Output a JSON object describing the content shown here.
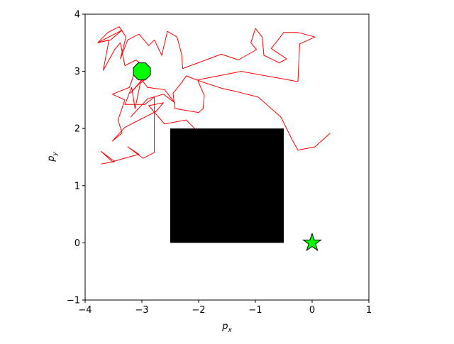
{
  "chart_data": {
    "type": "line",
    "title": "",
    "xlabel": "p_x",
    "ylabel": "p_y",
    "xlabel_parts": {
      "base": "p",
      "sub": "x"
    },
    "ylabel_parts": {
      "base": "p",
      "sub": "y"
    },
    "xlim": [
      -4,
      1
    ],
    "ylim": [
      -1,
      4
    ],
    "xticks": [
      -4,
      -3,
      -2,
      -1,
      0,
      1
    ],
    "yticks": [
      -1,
      0,
      1,
      2,
      3,
      4
    ],
    "xtick_labels": [
      "−4",
      "−3",
      "−2",
      "−1",
      "0",
      "1"
    ],
    "ytick_labels": [
      "−1",
      "0",
      "1",
      "2",
      "3",
      "4"
    ],
    "grid": false,
    "legend": "none",
    "series": [
      {
        "color": "#ff0000",
        "points": [
          [
            -3.72,
            1.38
          ],
          [
            -3.48,
            1.42
          ],
          [
            -3.72,
            1.6
          ],
          [
            -3.52,
            1.42
          ],
          [
            -3.05,
            1.55
          ],
          [
            -3.25,
            1.68
          ],
          [
            -2.98,
            1.48
          ],
          [
            -2.78,
            1.58
          ],
          [
            -2.78,
            2.55
          ],
          [
            -2.95,
            2.42
          ],
          [
            -3.3,
            2.42
          ],
          [
            -3.18,
            2.72
          ],
          [
            -3.12,
            2.35
          ],
          [
            -2.98,
            3.02
          ],
          [
            -2.95,
            2.85
          ],
          [
            -3.05,
            2.78
          ],
          [
            -3.2,
            2.62
          ],
          [
            -3.0,
            2.85
          ],
          [
            -2.88,
            3.0
          ],
          [
            -3.1,
            3.2
          ],
          [
            -3.3,
            3.1
          ],
          [
            -3.38,
            3.5
          ],
          [
            -3.48,
            3.38
          ],
          [
            -3.68,
            3.02
          ],
          [
            -3.58,
            3.55
          ],
          [
            -3.78,
            3.5
          ],
          [
            -3.35,
            3.72
          ],
          [
            -3.55,
            3.55
          ],
          [
            -3.78,
            3.5
          ],
          [
            -3.6,
            3.68
          ],
          [
            -3.4,
            3.78
          ],
          [
            -3.28,
            3.6
          ],
          [
            -3.38,
            3.22
          ],
          [
            -3.25,
            3.55
          ],
          [
            -3.05,
            3.65
          ],
          [
            -2.88,
            3.45
          ],
          [
            -2.78,
            3.55
          ],
          [
            -2.65,
            3.28
          ],
          [
            -2.55,
            3.7
          ],
          [
            -2.38,
            3.6
          ],
          [
            -2.3,
            3.3
          ],
          [
            -2.28,
            3.05
          ],
          [
            -1.6,
            3.3
          ],
          [
            -1.3,
            3.2
          ],
          [
            -0.98,
            3.38
          ],
          [
            -1.08,
            3.5
          ],
          [
            -1.0,
            3.75
          ],
          [
            -0.88,
            3.6
          ],
          [
            -0.85,
            3.28
          ],
          [
            -0.58,
            3.15
          ],
          [
            -0.45,
            3.22
          ],
          [
            -0.72,
            3.4
          ],
          [
            -0.5,
            3.68
          ],
          [
            -0.25,
            3.68
          ],
          [
            0.05,
            3.6
          ],
          [
            -0.22,
            3.48
          ],
          [
            -0.25,
            2.82
          ],
          [
            -0.58,
            2.88
          ],
          [
            -1.25,
            3.0
          ],
          [
            -2.02,
            2.85
          ],
          [
            -1.9,
            2.58
          ],
          [
            -1.92,
            2.35
          ],
          [
            -2.0,
            2.28
          ],
          [
            -2.42,
            2.35
          ],
          [
            -2.45,
            2.62
          ],
          [
            -2.3,
            2.8
          ],
          [
            -2.22,
            2.92
          ],
          [
            -1.95,
            2.82
          ],
          [
            -1.58,
            2.7
          ],
          [
            -1.35,
            2.65
          ],
          [
            -0.95,
            2.55
          ],
          [
            -0.55,
            2.2
          ],
          [
            -0.35,
            1.8
          ],
          [
            -0.25,
            1.62
          ],
          [
            0.05,
            1.68
          ],
          [
            0.32,
            1.92
          ]
        ]
      },
      {
        "color": "#ff0000",
        "points": [
          [
            -2.28,
            1.45
          ],
          [
            -2.1,
            1.62
          ],
          [
            -2.3,
            1.85
          ],
          [
            -2.05,
            1.98
          ],
          [
            -2.22,
            2.15
          ],
          [
            -2.6,
            2.08
          ],
          [
            -2.88,
            2.4
          ],
          [
            -2.62,
            2.45
          ],
          [
            -2.75,
            2.3
          ],
          [
            -3.3,
            2.02
          ],
          [
            -3.52,
            1.78
          ],
          [
            -3.35,
            1.92
          ],
          [
            -3.42,
            2.15
          ],
          [
            -3.3,
            2.5
          ],
          [
            -3.52,
            2.6
          ],
          [
            -3.22,
            2.72
          ],
          [
            -3.12,
            3.0
          ],
          [
            -2.9,
            2.72
          ],
          [
            -2.6,
            2.68
          ],
          [
            -2.42,
            2.45
          ],
          [
            -2.62,
            2.6
          ],
          [
            -2.9,
            2.52
          ],
          [
            -3.2,
            2.2
          ]
        ]
      }
    ],
    "obstacle": {
      "x": [
        -2.5,
        -0.5
      ],
      "y": [
        0,
        2
      ],
      "color": "#000000"
    },
    "start_marker": {
      "shape": "octagon",
      "x": -3.0,
      "y": 3.0,
      "color": "#00ff00"
    },
    "goal_marker": {
      "shape": "star",
      "x": 0.0,
      "y": 0.0,
      "color": "#00ff00"
    }
  }
}
